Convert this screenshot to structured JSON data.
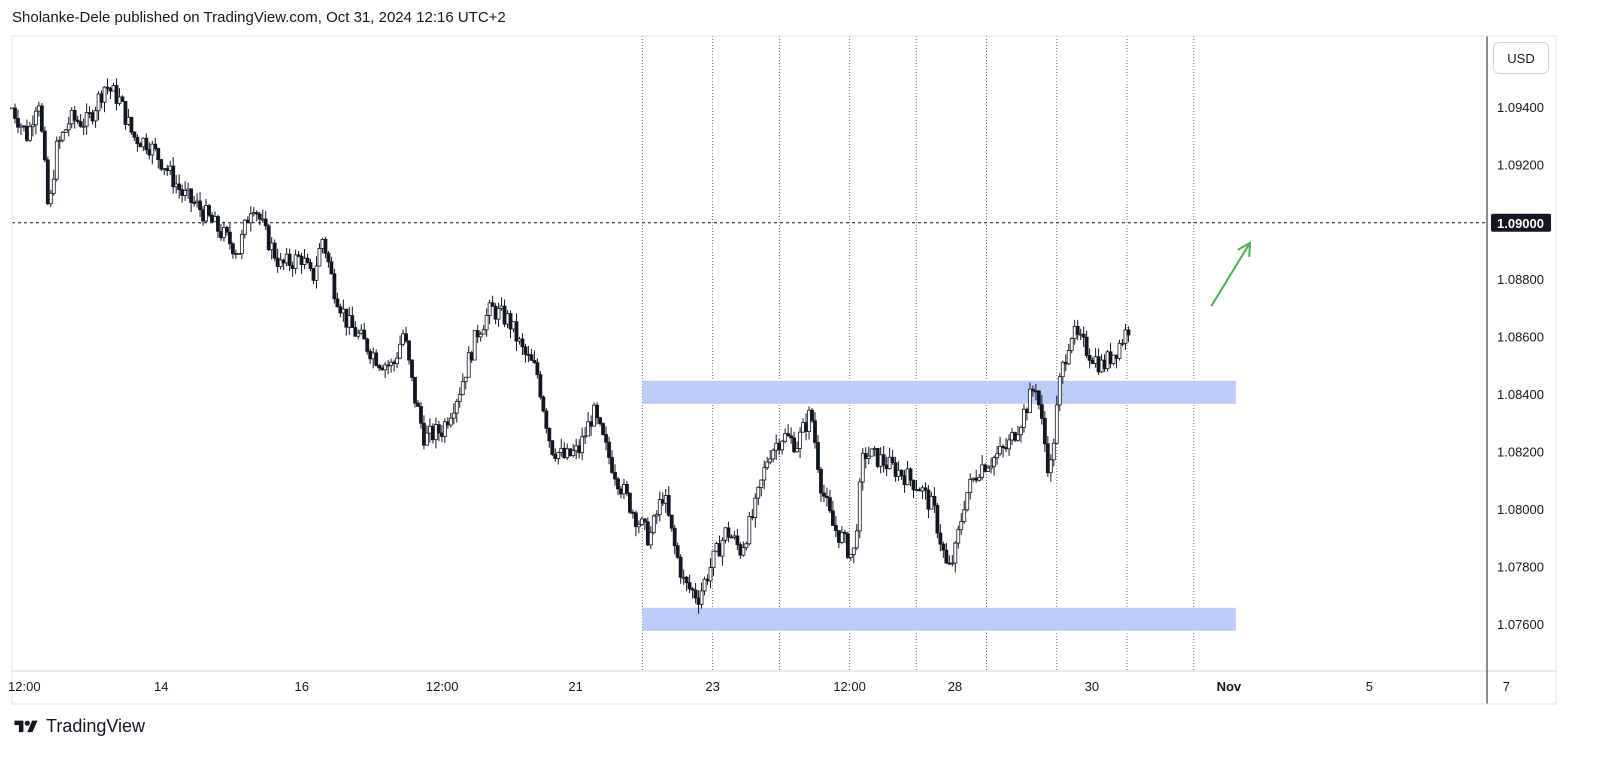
{
  "header": {
    "text": "Sholanke-Dele published on TradingView.com, Oct 31, 2024 12:16 UTC+2"
  },
  "currency": "USD",
  "footer": {
    "brand": "TradingView"
  },
  "chart_data": {
    "type": "candlestick",
    "title": "",
    "ylim": [
      1.0744,
      1.0965
    ],
    "y_ticks": [
      {
        "value": 1.094,
        "label": "1.09400"
      },
      {
        "value": 1.092,
        "label": "1.09200"
      },
      {
        "value": 1.088,
        "label": "1.08800"
      },
      {
        "value": 1.086,
        "label": "1.08600"
      },
      {
        "value": 1.084,
        "label": "1.08400"
      },
      {
        "value": 1.082,
        "label": "1.08200"
      },
      {
        "value": 1.08,
        "label": "1.08000"
      },
      {
        "value": 1.078,
        "label": "1.07800"
      },
      {
        "value": 1.076,
        "label": "1.07600"
      }
    ],
    "x_ticks": [
      {
        "pos": 0.5,
        "label": "12:00",
        "bold": false
      },
      {
        "pos": 4.4,
        "label": "14",
        "bold": false
      },
      {
        "pos": 8.4,
        "label": "16",
        "bold": false
      },
      {
        "pos": 12.4,
        "label": "12:00",
        "bold": false
      },
      {
        "pos": 16.2,
        "label": "21",
        "bold": false
      },
      {
        "pos": 20.1,
        "label": "23",
        "bold": false
      },
      {
        "pos": 24.0,
        "label": "12:00",
        "bold": false
      },
      {
        "pos": 27.0,
        "label": "28",
        "bold": false
      },
      {
        "pos": 30.9,
        "label": "30",
        "bold": false
      },
      {
        "pos": 34.8,
        "label": "Nov",
        "bold": true
      },
      {
        "pos": 38.8,
        "label": "5",
        "bold": false
      },
      {
        "pos": 42.7,
        "label": "7",
        "bold": false
      }
    ],
    "x_range": [
      0.15,
      42.15
    ],
    "session_separators": [
      18.1,
      20.1,
      22.0,
      24.0,
      25.9,
      27.9,
      29.9,
      31.9,
      33.8
    ],
    "horizontal_line": {
      "value": 1.09,
      "label": "1.09000"
    },
    "zones": [
      {
        "x_start": 18.1,
        "x_end": 35.0,
        "y_low": 1.0837,
        "y_high": 1.0845
      },
      {
        "x_start": 18.1,
        "x_end": 35.0,
        "y_low": 1.0758,
        "y_high": 1.0766
      }
    ],
    "arrow": {
      "from": [
        34.3,
        1.0871
      ],
      "to": [
        35.4,
        1.0893
      ],
      "color": "#4caf50"
    },
    "price_path": [
      [
        0.15,
        1.094
      ],
      [
        0.6,
        1.093
      ],
      [
        0.9,
        1.0945
      ],
      [
        1.2,
        1.0902
      ],
      [
        1.4,
        1.0925
      ],
      [
        1.8,
        1.0936
      ],
      [
        2.3,
        1.0935
      ],
      [
        2.8,
        1.0948
      ],
      [
        3.2,
        1.0943
      ],
      [
        3.6,
        1.093
      ],
      [
        4.0,
        1.0928
      ],
      [
        4.5,
        1.092
      ],
      [
        5.0,
        1.091
      ],
      [
        5.5,
        1.0905
      ],
      [
        6.0,
        1.0898
      ],
      [
        6.6,
        1.089
      ],
      [
        7.0,
        1.0908
      ],
      [
        7.4,
        1.0895
      ],
      [
        7.8,
        1.0885
      ],
      [
        8.4,
        1.0888
      ],
      [
        8.7,
        1.088
      ],
      [
        9.0,
        1.0895
      ],
      [
        9.3,
        1.0878
      ],
      [
        9.7,
        1.0865
      ],
      [
        10.2,
        1.0858
      ],
      [
        10.6,
        1.0852
      ],
      [
        11.0,
        1.085
      ],
      [
        11.3,
        1.0862
      ],
      [
        11.6,
        1.084
      ],
      [
        11.9,
        1.0825
      ],
      [
        12.4,
        1.0828
      ],
      [
        12.9,
        1.0842
      ],
      [
        13.4,
        1.0862
      ],
      [
        13.8,
        1.087
      ],
      [
        14.3,
        1.0866
      ],
      [
        14.7,
        1.0855
      ],
      [
        15.1,
        1.0848
      ],
      [
        15.5,
        1.0822
      ],
      [
        15.9,
        1.0818
      ],
      [
        16.3,
        1.0821
      ],
      [
        16.7,
        1.0834
      ],
      [
        17.1,
        1.082
      ],
      [
        17.5,
        1.0808
      ],
      [
        17.9,
        1.0798
      ],
      [
        18.3,
        1.079
      ],
      [
        18.7,
        1.0806
      ],
      [
        19.0,
        1.0788
      ],
      [
        19.3,
        1.0774
      ],
      [
        19.7,
        1.077
      ],
      [
        20.1,
        1.0782
      ],
      [
        20.5,
        1.0793
      ],
      [
        20.9,
        1.0786
      ],
      [
        21.3,
        1.08
      ],
      [
        21.7,
        1.082
      ],
      [
        22.1,
        1.0826
      ],
      [
        22.5,
        1.0823
      ],
      [
        22.9,
        1.0834
      ],
      [
        23.2,
        1.0808
      ],
      [
        23.5,
        1.0795
      ],
      [
        23.8,
        1.079
      ],
      [
        24.1,
        1.0783
      ],
      [
        24.4,
        1.082
      ],
      [
        24.8,
        1.0818
      ],
      [
        25.2,
        1.0815
      ],
      [
        25.6,
        1.0812
      ],
      [
        26.0,
        1.0808
      ],
      [
        26.4,
        1.08
      ],
      [
        26.8,
        1.0778
      ],
      [
        27.0,
        1.0785
      ],
      [
        27.3,
        1.0805
      ],
      [
        27.7,
        1.0815
      ],
      [
        28.1,
        1.0818
      ],
      [
        28.5,
        1.0822
      ],
      [
        28.9,
        1.0832
      ],
      [
        29.3,
        1.0844
      ],
      [
        29.7,
        1.0812
      ],
      [
        30.0,
        1.0846
      ],
      [
        30.3,
        1.0862
      ],
      [
        30.6,
        1.0858
      ],
      [
        30.9,
        1.0854
      ],
      [
        31.2,
        1.085
      ],
      [
        31.6,
        1.0856
      ],
      [
        32.0,
        1.0865
      ]
    ]
  }
}
